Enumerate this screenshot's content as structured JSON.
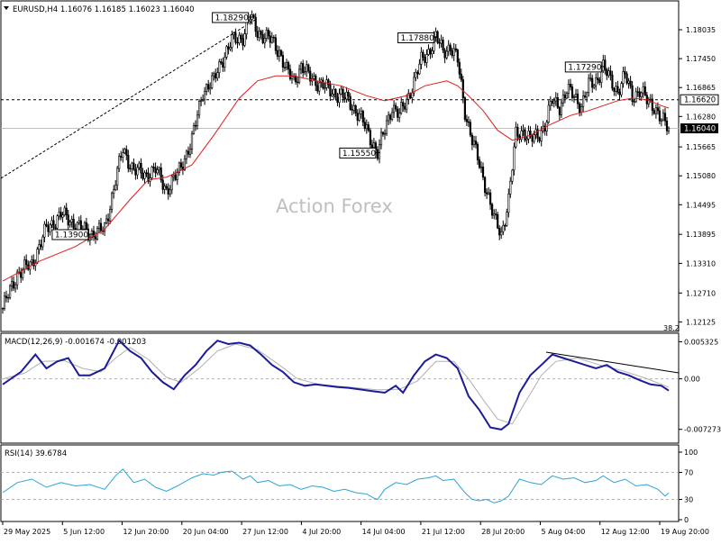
{
  "chart_data": [
    {
      "type": "candlestick",
      "title": "EURUSD,H4  1.16076  1.16185  1.16023  1.16040",
      "watermark": "Action Forex",
      "ylim": [
        1.1195,
        1.186
      ],
      "y_ticks": [
        "1.18035",
        "1.17450",
        "1.16865",
        "1.16280",
        "1.15665",
        "1.15080",
        "1.14495",
        "1.13895",
        "1.13310",
        "1.12710",
        "1.12125"
      ],
      "current_price": "1.16040",
      "reference_level": "1.16620",
      "support_label": "38.2",
      "callouts": [
        "1.18290",
        "1.17880",
        "1.17290",
        "1.15550",
        "1.13900"
      ],
      "price_path": [
        [
          0,
          1.124
        ],
        [
          8,
          1.131
        ],
        [
          16,
          1.133
        ],
        [
          24,
          1.14
        ],
        [
          32,
          1.143
        ],
        [
          40,
          1.141
        ],
        [
          48,
          1.139
        ],
        [
          56,
          1.14
        ],
        [
          62,
          1.15
        ],
        [
          66,
          1.156
        ],
        [
          72,
          1.152
        ],
        [
          78,
          1.151
        ],
        [
          84,
          1.152
        ],
        [
          90,
          1.148
        ],
        [
          96,
          1.151
        ],
        [
          104,
          1.158
        ],
        [
          110,
          1.168
        ],
        [
          116,
          1.17
        ],
        [
          120,
          1.174
        ],
        [
          126,
          1.178
        ],
        [
          132,
          1.179
        ],
        [
          136,
          1.1829
        ],
        [
          140,
          1.18
        ],
        [
          144,
          1.179
        ],
        [
          148,
          1.178
        ],
        [
          152,
          1.176
        ],
        [
          156,
          1.172
        ],
        [
          160,
          1.17
        ],
        [
          164,
          1.173
        ],
        [
          168,
          1.171
        ],
        [
          172,
          1.17
        ],
        [
          176,
          1.169
        ],
        [
          180,
          1.168
        ],
        [
          186,
          1.167
        ],
        [
          190,
          1.166
        ],
        [
          196,
          1.163
        ],
        [
          200,
          1.16
        ],
        [
          204,
          1.157
        ],
        [
          206,
          1.1555
        ],
        [
          210,
          1.16
        ],
        [
          214,
          1.165
        ],
        [
          218,
          1.163
        ],
        [
          222,
          1.166
        ],
        [
          226,
          1.17
        ],
        [
          230,
          1.174
        ],
        [
          234,
          1.176
        ],
        [
          238,
          1.1788
        ],
        [
          242,
          1.176
        ],
        [
          246,
          1.177
        ],
        [
          250,
          1.174
        ],
        [
          254,
          1.164
        ],
        [
          258,
          1.158
        ],
        [
          262,
          1.153
        ],
        [
          266,
          1.148
        ],
        [
          270,
          1.142
        ],
        [
          274,
          1.139
        ],
        [
          278,
          1.146
        ],
        [
          282,
          1.159
        ],
        [
          286,
          1.16
        ],
        [
          290,
          1.158
        ],
        [
          294,
          1.159
        ],
        [
          298,
          1.161
        ],
        [
          302,
          1.166
        ],
        [
          306,
          1.165
        ],
        [
          310,
          1.168
        ],
        [
          314,
          1.167
        ],
        [
          318,
          1.165
        ],
        [
          322,
          1.169
        ],
        [
          326,
          1.17
        ],
        [
          330,
          1.1729
        ],
        [
          334,
          1.17
        ],
        [
          338,
          1.168
        ],
        [
          342,
          1.171
        ],
        [
          346,
          1.167
        ],
        [
          350,
          1.168
        ],
        [
          354,
          1.166
        ],
        [
          358,
          1.165
        ],
        [
          362,
          1.162
        ],
        [
          366,
          1.1604
        ]
      ],
      "ma_path": [
        [
          0,
          1.1295
        ],
        [
          20,
          1.1335
        ],
        [
          40,
          1.1365
        ],
        [
          56,
          1.14
        ],
        [
          70,
          1.146
        ],
        [
          80,
          1.15
        ],
        [
          90,
          1.1505
        ],
        [
          104,
          1.153
        ],
        [
          116,
          1.159
        ],
        [
          130,
          1.1665
        ],
        [
          140,
          1.17
        ],
        [
          150,
          1.171
        ],
        [
          160,
          1.171
        ],
        [
          172,
          1.17
        ],
        [
          186,
          1.169
        ],
        [
          200,
          1.167
        ],
        [
          210,
          1.166
        ],
        [
          222,
          1.167
        ],
        [
          232,
          1.169
        ],
        [
          244,
          1.17
        ],
        [
          250,
          1.169
        ],
        [
          256,
          1.167
        ],
        [
          264,
          1.164
        ],
        [
          272,
          1.16
        ],
        [
          280,
          1.158
        ],
        [
          290,
          1.159
        ],
        [
          300,
          1.161
        ],
        [
          312,
          1.163
        ],
        [
          322,
          1.164
        ],
        [
          330,
          1.165
        ],
        [
          338,
          1.166
        ],
        [
          346,
          1.1665
        ],
        [
          354,
          1.1662
        ],
        [
          362,
          1.165
        ],
        [
          366,
          1.1645
        ]
      ]
    },
    {
      "type": "line",
      "title": "MACD(12,26,9) -0.001674 -0.001203",
      "ylim": [
        -0.009,
        0.0063
      ],
      "y_ticks": [
        "0.005325",
        "0.00",
        "-0.007273"
      ],
      "series": [
        {
          "color": "#1c1c99",
          "values": [
            [
              0,
              -0.0008
            ],
            [
              10,
              0.001
            ],
            [
              18,
              0.0035
            ],
            [
              24,
              0.0015
            ],
            [
              30,
              0.0025
            ],
            [
              36,
              0.003
            ],
            [
              42,
              0.0005
            ],
            [
              48,
              0.0005
            ],
            [
              56,
              0.0015
            ],
            [
              64,
              0.0055
            ],
            [
              70,
              0.004
            ],
            [
              76,
              0.003
            ],
            [
              82,
              0.001
            ],
            [
              88,
              -0.0005
            ],
            [
              94,
              -0.0015
            ],
            [
              100,
              0.0005
            ],
            [
              106,
              0.002
            ],
            [
              112,
              0.004
            ],
            [
              118,
              0.0055
            ],
            [
              124,
              0.005
            ],
            [
              130,
              0.0052
            ],
            [
              136,
              0.0048
            ],
            [
              142,
              0.0035
            ],
            [
              148,
              0.002
            ],
            [
              154,
              0.001
            ],
            [
              160,
              -0.0005
            ],
            [
              166,
              -0.001
            ],
            [
              172,
              -0.0008
            ],
            [
              178,
              -0.001
            ],
            [
              184,
              -0.0012
            ],
            [
              190,
              -0.0013
            ],
            [
              196,
              -0.0015
            ],
            [
              204,
              -0.0018
            ],
            [
              210,
              -0.002
            ],
            [
              216,
              -0.001
            ],
            [
              220,
              -0.002
            ],
            [
              226,
              0.0005
            ],
            [
              232,
              0.0025
            ],
            [
              238,
              0.0035
            ],
            [
              244,
              0.003
            ],
            [
              250,
              0.0015
            ],
            [
              256,
              -0.0025
            ],
            [
              262,
              -0.0045
            ],
            [
              268,
              -0.007
            ],
            [
              274,
              -0.0073
            ],
            [
              278,
              -0.0065
            ],
            [
              284,
              -0.002
            ],
            [
              290,
              0.0005
            ],
            [
              296,
              0.002
            ],
            [
              302,
              0.0035
            ],
            [
              308,
              0.003
            ],
            [
              314,
              0.0025
            ],
            [
              320,
              0.002
            ],
            [
              326,
              0.0015
            ],
            [
              332,
              0.002
            ],
            [
              338,
              0.001
            ],
            [
              344,
              0.0005
            ],
            [
              350,
              -0.0002
            ],
            [
              356,
              -0.0008
            ],
            [
              362,
              -0.001
            ],
            [
              366,
              -0.0017
            ]
          ]
        },
        {
          "color": "#b0b0b0",
          "values": [
            [
              0,
              0.0
            ],
            [
              12,
              0.0008
            ],
            [
              22,
              0.0025
            ],
            [
              34,
              0.0026
            ],
            [
              44,
              0.0015
            ],
            [
              54,
              0.001
            ],
            [
              62,
              0.003
            ],
            [
              70,
              0.0045
            ],
            [
              80,
              0.0028
            ],
            [
              90,
              0.0002
            ],
            [
              98,
              -0.0005
            ],
            [
              108,
              0.0015
            ],
            [
              118,
              0.004
            ],
            [
              128,
              0.005
            ],
            [
              140,
              0.0042
            ],
            [
              152,
              0.002
            ],
            [
              162,
              0.0
            ],
            [
              174,
              -0.0008
            ],
            [
              190,
              -0.0012
            ],
            [
              206,
              -0.0016
            ],
            [
              218,
              -0.0015
            ],
            [
              228,
              -0.0003
            ],
            [
              238,
              0.0025
            ],
            [
              248,
              0.0025
            ],
            [
              256,
              0.0
            ],
            [
              264,
              -0.003
            ],
            [
              272,
              -0.0058
            ],
            [
              280,
              -0.0065
            ],
            [
              288,
              -0.003
            ],
            [
              296,
              0.0005
            ],
            [
              304,
              0.0025
            ],
            [
              316,
              0.003
            ],
            [
              328,
              0.002
            ],
            [
              340,
              0.0012
            ],
            [
              352,
              0.0002
            ],
            [
              366,
              -0.0012
            ]
          ]
        }
      ]
    },
    {
      "type": "line",
      "title": "RSI(14) 39.6784",
      "ylim": [
        0,
        100
      ],
      "y_ticks": [
        "100",
        "70",
        "30",
        "0"
      ],
      "levels": [
        70,
        30
      ],
      "series": [
        {
          "color": "#2da3d8",
          "values": [
            [
              0,
              40
            ],
            [
              8,
              55
            ],
            [
              16,
              60
            ],
            [
              24,
              48
            ],
            [
              32,
              55
            ],
            [
              40,
              50
            ],
            [
              48,
              52
            ],
            [
              56,
              45
            ],
            [
              62,
              65
            ],
            [
              66,
              75
            ],
            [
              72,
              55
            ],
            [
              78,
              60
            ],
            [
              84,
              48
            ],
            [
              90,
              42
            ],
            [
              96,
              50
            ],
            [
              104,
              62
            ],
            [
              110,
              68
            ],
            [
              116,
              66
            ],
            [
              120,
              70
            ],
            [
              126,
              72
            ],
            [
              132,
              60
            ],
            [
              136,
              65
            ],
            [
              140,
              55
            ],
            [
              146,
              58
            ],
            [
              152,
              50
            ],
            [
              158,
              52
            ],
            [
              164,
              45
            ],
            [
              170,
              50
            ],
            [
              176,
              48
            ],
            [
              182,
              42
            ],
            [
              188,
              45
            ],
            [
              194,
              40
            ],
            [
              200,
              38
            ],
            [
              204,
              32
            ],
            [
              206,
              30
            ],
            [
              210,
              45
            ],
            [
              216,
              55
            ],
            [
              222,
              52
            ],
            [
              228,
              60
            ],
            [
              234,
              62
            ],
            [
              238,
              65
            ],
            [
              242,
              58
            ],
            [
              248,
              60
            ],
            [
              254,
              40
            ],
            [
              258,
              30
            ],
            [
              262,
              28
            ],
            [
              266,
              30
            ],
            [
              270,
              25
            ],
            [
              274,
              28
            ],
            [
              278,
              35
            ],
            [
              284,
              60
            ],
            [
              290,
              55
            ],
            [
              296,
              52
            ],
            [
              302,
              65
            ],
            [
              308,
              60
            ],
            [
              314,
              62
            ],
            [
              320,
              55
            ],
            [
              326,
              58
            ],
            [
              330,
              65
            ],
            [
              336,
              55
            ],
            [
              342,
              60
            ],
            [
              348,
              50
            ],
            [
              354,
              52
            ],
            [
              360,
              45
            ],
            [
              364,
              35
            ],
            [
              366,
              39.68
            ]
          ]
        }
      ]
    }
  ],
  "x_axis": {
    "labels": [
      "29 May 2025",
      "5 Jun 12:00",
      "12 Jun 20:00",
      "20 Jun 04:00",
      "27 Jun 12:00",
      "4 Jul 20:00",
      "14 Jul 04:00",
      "21 Jul 12:00",
      "28 Jul 20:00",
      "5 Aug 04:00",
      "12 Aug 12:00",
      "19 Aug 20:00"
    ]
  }
}
